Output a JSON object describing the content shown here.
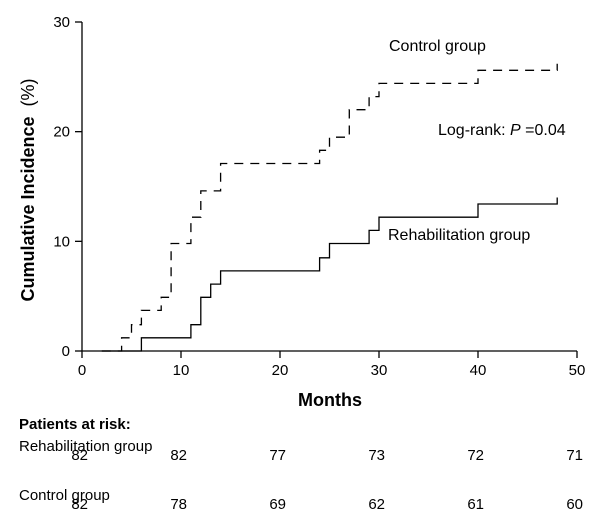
{
  "chart_data": {
    "type": "line",
    "step": true,
    "xlabel": "Months",
    "ylabel_main": "Cumulative Incidence",
    "ylabel_unit": "(%)",
    "xlim": [
      0,
      50
    ],
    "ylim": [
      0,
      30
    ],
    "xticks": [
      0,
      10,
      20,
      30,
      40,
      50
    ],
    "yticks": [
      0,
      10,
      20,
      30
    ],
    "grid": false,
    "series": [
      {
        "name": "Control group",
        "style": "dashed",
        "color": "#000000",
        "points": [
          [
            2,
            0
          ],
          [
            4,
            0
          ],
          [
            4,
            1.2
          ],
          [
            5,
            1.2
          ],
          [
            5,
            2.4
          ],
          [
            6,
            2.4
          ],
          [
            6,
            3.7
          ],
          [
            8,
            3.7
          ],
          [
            8,
            4.9
          ],
          [
            9,
            4.9
          ],
          [
            9,
            9.8
          ],
          [
            11,
            9.8
          ],
          [
            11,
            12.2
          ],
          [
            12,
            12.2
          ],
          [
            12,
            14.6
          ],
          [
            14,
            14.6
          ],
          [
            14,
            17.1
          ],
          [
            24,
            17.1
          ],
          [
            24,
            18.3
          ],
          [
            25,
            18.3
          ],
          [
            25,
            19.5
          ],
          [
            27,
            19.5
          ],
          [
            27,
            22.0
          ],
          [
            29,
            22.0
          ],
          [
            29,
            23.2
          ],
          [
            30,
            23.2
          ],
          [
            30,
            24.4
          ],
          [
            40,
            24.4
          ],
          [
            40,
            25.6
          ],
          [
            48,
            25.6
          ],
          [
            48,
            26.2
          ]
        ]
      },
      {
        "name": "Rehabilitation group",
        "style": "solid",
        "color": "#000000",
        "points": [
          [
            2,
            0
          ],
          [
            6,
            0
          ],
          [
            6,
            1.2
          ],
          [
            11,
            1.2
          ],
          [
            11,
            2.4
          ],
          [
            12,
            2.4
          ],
          [
            12,
            4.9
          ],
          [
            13,
            4.9
          ],
          [
            13,
            6.1
          ],
          [
            14,
            6.1
          ],
          [
            14,
            7.3
          ],
          [
            24,
            7.3
          ],
          [
            24,
            8.5
          ],
          [
            25,
            8.5
          ],
          [
            25,
            9.8
          ],
          [
            29,
            9.8
          ],
          [
            29,
            11.0
          ],
          [
            30,
            11.0
          ],
          [
            30,
            12.2
          ],
          [
            40,
            12.2
          ],
          [
            40,
            13.4
          ],
          [
            48,
            13.4
          ],
          [
            48,
            14.0
          ]
        ]
      }
    ],
    "annotations": {
      "control_label": "Control group",
      "rehab_label": "Rehabilitation group",
      "logrank_prefix": "Log-rank: ",
      "logrank_p": "P",
      "logrank_value": "=0.04"
    }
  },
  "risk_table": {
    "title": "Patients at risk:",
    "rows": [
      {
        "name": "Rehabilitation group",
        "values": [
          "82",
          "82",
          "77",
          "73",
          "72",
          "71"
        ]
      },
      {
        "name": "Control group",
        "values": [
          "82",
          "78",
          "69",
          "62",
          "61",
          "60"
        ]
      }
    ]
  }
}
